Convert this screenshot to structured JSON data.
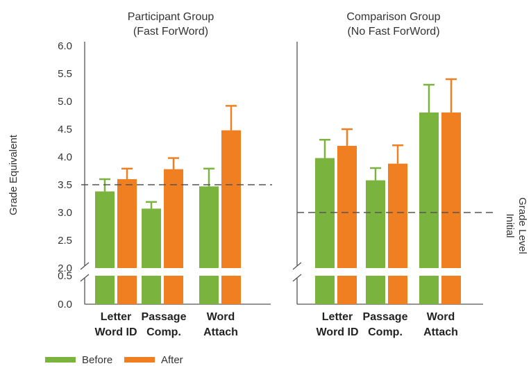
{
  "colors": {
    "before": "#7ab33e",
    "after": "#f07f22",
    "axis": "#555555",
    "dash": "#555555"
  },
  "chart_data": {
    "type": "bar",
    "ylabel": "Grade Equivalent",
    "ylim": [
      0,
      6
    ],
    "y_break": [
      0.5,
      2.0
    ],
    "yticks": [
      "6.0",
      "5.5",
      "5.0",
      "4.5",
      "4.0",
      "3.5",
      "3.0",
      "2.5",
      "2.0",
      "0.5",
      "0.0"
    ],
    "right_axis_label": [
      "Initial",
      "Grade Level"
    ],
    "legend": [
      "Before",
      "After"
    ],
    "panels": [
      {
        "title": [
          "Participant Group",
          "(Fast ForWord)"
        ],
        "categories": [
          [
            "Letter",
            "Word ID"
          ],
          [
            "Passage",
            "Comp."
          ],
          [
            "Word",
            "Attach"
          ]
        ],
        "series": [
          {
            "name": "Before",
            "values": [
              3.38,
              3.07,
              3.47
            ],
            "errors": [
              0.22,
              0.12,
              0.32
            ]
          },
          {
            "name": "After",
            "values": [
              3.6,
              3.78,
              4.48
            ],
            "errors": [
              0.19,
              0.2,
              0.44
            ]
          }
        ],
        "reference_line": 3.5
      },
      {
        "title": [
          "Comparison Group",
          "(No Fast ForWord)"
        ],
        "categories": [
          [
            "Letter",
            "Word ID"
          ],
          [
            "Passage",
            "Comp."
          ],
          [
            "Word",
            "Attach"
          ]
        ],
        "series": [
          {
            "name": "Before",
            "values": [
              3.98,
              3.58,
              4.8
            ],
            "errors": [
              0.33,
              0.22,
              0.5
            ]
          },
          {
            "name": "After",
            "values": [
              4.2,
              3.88,
              4.8
            ],
            "errors": [
              0.3,
              0.33,
              0.6
            ]
          }
        ],
        "reference_line": 3.0
      }
    ]
  }
}
